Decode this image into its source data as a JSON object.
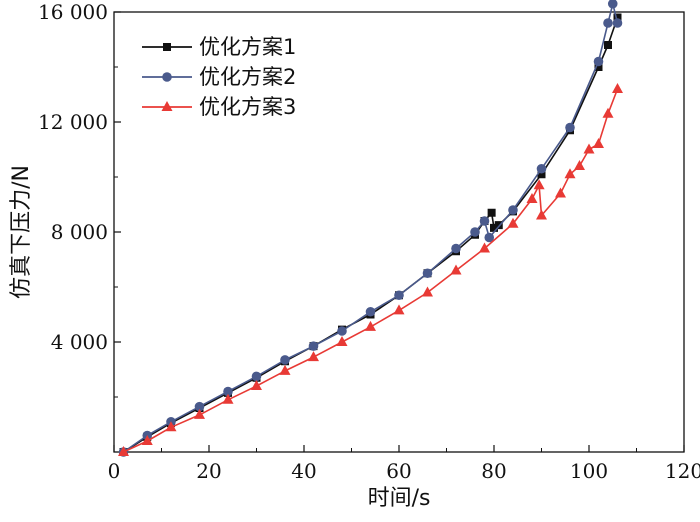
{
  "chart_data": {
    "type": "line",
    "title": "",
    "xlabel": "时间/s",
    "ylabel": "仿真下压力/N",
    "xlim": [
      0,
      120
    ],
    "ylim": [
      0,
      16000
    ],
    "xticks": [
      0,
      20,
      40,
      60,
      80,
      100,
      120
    ],
    "xtick_labels": [
      "0",
      "20",
      "40",
      "60",
      "80",
      "100",
      "120"
    ],
    "yticks": [
      4000,
      8000,
      12000,
      16000
    ],
    "ytick_labels": [
      "4 000",
      "8 000",
      "12 000",
      "16 000"
    ],
    "grid": false,
    "legend_position": "top-left",
    "series": [
      {
        "name": "优化方案1",
        "color": "#111111",
        "marker": "square",
        "x": [
          2,
          7,
          12,
          18,
          24,
          30,
          36,
          42,
          48,
          54,
          60,
          66,
          72,
          76,
          78,
          79.5,
          80,
          81,
          84,
          90,
          96,
          102,
          104,
          106
        ],
        "y": [
          0,
          550,
          1050,
          1600,
          2150,
          2700,
          3300,
          3850,
          4450,
          5000,
          5700,
          6500,
          7300,
          7900,
          8400,
          8700,
          8150,
          8250,
          8750,
          10100,
          11700,
          14000,
          14800,
          15800
        ]
      },
      {
        "name": "优化方案2",
        "color": "#4a5a8c",
        "marker": "circle",
        "x": [
          2,
          7,
          12,
          18,
          24,
          30,
          36,
          42,
          48,
          54,
          60,
          66,
          72,
          76,
          78,
          79,
          84,
          90,
          96,
          102,
          104,
          105,
          106
        ],
        "y": [
          0,
          600,
          1100,
          1650,
          2200,
          2750,
          3350,
          3850,
          4400,
          5100,
          5700,
          6500,
          7400,
          8000,
          8400,
          7800,
          8800,
          10300,
          11800,
          14200,
          15600,
          16300,
          15600
        ]
      },
      {
        "name": "优化方案3",
        "color": "#e83a35",
        "marker": "triangle",
        "x": [
          2,
          7,
          12,
          18,
          24,
          30,
          36,
          42,
          48,
          54,
          60,
          66,
          72,
          78,
          84,
          88,
          89.5,
          90,
          94,
          96,
          98,
          100,
          102,
          104,
          106
        ],
        "y": [
          0,
          400,
          900,
          1350,
          1900,
          2400,
          2950,
          3450,
          4000,
          4550,
          5150,
          5800,
          6600,
          7400,
          8300,
          9200,
          9700,
          8600,
          9400,
          10100,
          10400,
          11000,
          11200,
          12300,
          13200
        ]
      }
    ]
  }
}
